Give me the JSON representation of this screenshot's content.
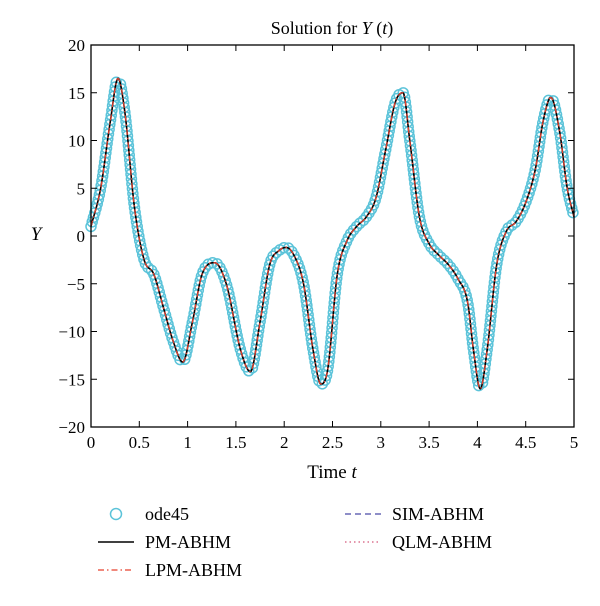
{
  "chart_data": {
    "type": "line",
    "title": "Solution for Y (t)",
    "title_parts": {
      "prefix": "Solution for ",
      "var": "Y",
      "paren_open": " (",
      "arg": "t",
      "paren_close": ")"
    },
    "xlabel": "Time t",
    "xlabel_parts": {
      "prefix": "Time ",
      "var": "t"
    },
    "ylabel": "Y",
    "xlim": [
      0,
      5
    ],
    "ylim": [
      -20,
      20
    ],
    "xticks": [
      0,
      0.5,
      1,
      1.5,
      2,
      2.5,
      3,
      3.5,
      4,
      4.5,
      5
    ],
    "xtick_labels": [
      "0",
      "0.5",
      "1",
      "1.5",
      "2",
      "2.5",
      "3",
      "3.5",
      "4",
      "4.5",
      "5"
    ],
    "yticks": [
      -20,
      -15,
      -10,
      -5,
      0,
      5,
      10,
      15,
      20
    ],
    "ytick_labels": [
      "−20",
      "−15",
      "−10",
      "−5",
      "0",
      "5",
      "10",
      "15",
      "20"
    ],
    "grid": false,
    "legend_placement": "bottom, outside plot, two columns",
    "trajectory": {
      "x": [
        0,
        0.1,
        0.2,
        0.28,
        0.35,
        0.45,
        0.55,
        0.65,
        0.75,
        0.85,
        0.95,
        1.05,
        1.15,
        1.28,
        1.4,
        1.55,
        1.65,
        1.75,
        1.85,
        1.95,
        2.02,
        2.1,
        2.2,
        2.3,
        2.38,
        2.45,
        2.55,
        2.65,
        2.75,
        2.85,
        2.95,
        3.05,
        3.15,
        3.23,
        3.3,
        3.4,
        3.5,
        3.6,
        3.7,
        3.8,
        3.9,
        3.96,
        4.03,
        4.1,
        4.2,
        4.3,
        4.4,
        4.5,
        4.6,
        4.68,
        4.76,
        4.85,
        4.93,
        5.0
      ],
      "y": [
        1,
        5,
        12,
        16.5,
        13,
        3,
        -2.5,
        -4,
        -7.5,
        -11,
        -13.2,
        -9,
        -4,
        -2.8,
        -5,
        -12,
        -14.2,
        -9,
        -3,
        -1.5,
        -1.2,
        -2,
        -5,
        -12,
        -15.5,
        -14,
        -4,
        -0.5,
        1,
        2,
        4,
        9,
        14,
        15,
        10,
        2,
        -0.8,
        -2,
        -3,
        -4.5,
        -7,
        -12,
        -16,
        -12,
        -3,
        0.5,
        1.5,
        3.5,
        7,
        12,
        14.5,
        11,
        5,
        2
      ]
    },
    "series": [
      {
        "name": "ode45",
        "style": "circle-markers",
        "color": "#5bc3d9"
      },
      {
        "name": "PM-ABHM",
        "style": "solid",
        "color": "#000000"
      },
      {
        "name": "LPM-ABHM",
        "style": "dash-dot",
        "color": "#e8412e"
      },
      {
        "name": "SIM-ABHM",
        "style": "dashed",
        "color": "#4a4aa8"
      },
      {
        "name": "QLM-ABHM",
        "style": "dotted",
        "color": "#d4587a"
      }
    ]
  }
}
